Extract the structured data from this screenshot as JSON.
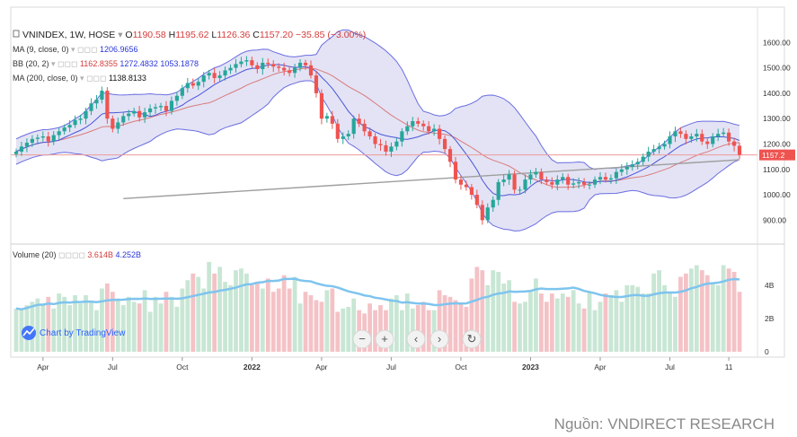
{
  "header": {
    "symbol": "VNINDEX, 1W, HOSE",
    "ohlc": {
      "o_label": "O",
      "o": "1190.58",
      "h_label": "H",
      "h": "1195.62",
      "l_label": "L",
      "l": "1126.36",
      "c_label": "C",
      "c": "1157.20",
      "change": "−35.85 (−3.00%)"
    }
  },
  "indicators": [
    {
      "label": "MA (9, close, 0)",
      "values": [
        "1206.9656"
      ],
      "colors": [
        "#2a36d9"
      ]
    },
    {
      "label": "BB (20, 2)",
      "values": [
        "1162.8355",
        "1272.4832",
        "1053.1878"
      ],
      "colors": [
        "#d63b3b",
        "#2a36d9",
        "#2a36d9"
      ]
    },
    {
      "label": "MA (200, close, 0)",
      "values": [
        "1138.8133"
      ],
      "colors": [
        "#111111"
      ]
    }
  ],
  "volume_legend": {
    "label": "Volume (20)",
    "values": [
      "3.614B",
      "4.252B"
    ],
    "colors": [
      "#d63b3b",
      "#2a36d9"
    ]
  },
  "last_price_label": "1157.2",
  "watermark": "Chart by TradingView",
  "source": "Nguồn: VNDIRECT RESEARCH",
  "colors": {
    "up": "#26a69a",
    "down": "#ef5350",
    "bb_fill": "#d9d9f2",
    "bb_line": "#6a6de0",
    "ma9": "#4a55d8",
    "ma20": "#d97b7b",
    "ma200": "#9e9e9e",
    "vol_ma": "#7ec4ee",
    "vol_up": "#c8e6d4",
    "vol_down": "#f4c2c6"
  },
  "chart_data": {
    "type": "candlestick",
    "y_ticks": [
      "900.00",
      "1000.00",
      "1100.00",
      "1200.00",
      "1300.00",
      "1400.00",
      "1500.00",
      "1600.00"
    ],
    "ylim": [
      820,
      1640
    ],
    "x_ticks": [
      {
        "week": 5,
        "label": "Apr"
      },
      {
        "week": 18,
        "label": "Jul"
      },
      {
        "week": 31,
        "label": "Oct"
      },
      {
        "week": 44,
        "label": "2022"
      },
      {
        "week": 57,
        "label": "Apr"
      },
      {
        "week": 70,
        "label": "Jul"
      },
      {
        "week": 83,
        "label": "Oct"
      },
      {
        "week": 96,
        "label": "2023"
      },
      {
        "week": 109,
        "label": "Apr"
      },
      {
        "week": 122,
        "label": "Jul"
      },
      {
        "week": 133,
        "label": "11"
      }
    ],
    "weeks": 136,
    "close": [
      1170,
      1190,
      1205,
      1220,
      1225,
      1230,
      1210,
      1235,
      1250,
      1265,
      1275,
      1295,
      1300,
      1330,
      1360,
      1375,
      1410,
      1300,
      1260,
      1285,
      1310,
      1320,
      1330,
      1305,
      1325,
      1340,
      1345,
      1350,
      1330,
      1370,
      1390,
      1420,
      1440,
      1430,
      1445,
      1470,
      1480,
      1460,
      1470,
      1490,
      1500,
      1515,
      1525,
      1530,
      1510,
      1495,
      1520,
      1515,
      1505,
      1500,
      1490,
      1480,
      1500,
      1520,
      1510,
      1470,
      1400,
      1300,
      1310,
      1280,
      1220,
      1230,
      1240,
      1300,
      1280,
      1250,
      1230,
      1200,
      1195,
      1170,
      1190,
      1210,
      1250,
      1270,
      1290,
      1280,
      1270,
      1250,
      1260,
      1220,
      1180,
      1130,
      1060,
      1040,
      1030,
      1000,
      960,
      900,
      950,
      980,
      1050,
      1060,
      1080,
      1020,
      1020,
      1060,
      1080,
      1090,
      1060,
      1050,
      1040,
      1060,
      1070,
      1040,
      1045,
      1050,
      1040,
      1040,
      1060,
      1070,
      1060,
      1065,
      1090,
      1100,
      1110,
      1120,
      1130,
      1150,
      1170,
      1180,
      1190,
      1200,
      1230,
      1250,
      1240,
      1220,
      1230,
      1240,
      1210,
      1200,
      1230,
      1240,
      1245,
      1210,
      1193,
      1157
    ],
    "volume_series": [
      {
        "name": "Volume",
        "unit": "B",
        "ylim": [
          0,
          5.5
        ],
        "y_ticks": [
          "0",
          "2B",
          "4B"
        ]
      }
    ],
    "volume": [
      2.6,
      2.5,
      2.8,
      3.0,
      3.2,
      2.9,
      3.3,
      2.6,
      3.5,
      3.3,
      2.8,
      3.4,
      2.9,
      3.4,
      3.0,
      2.5,
      3.8,
      4.1,
      3.6,
      3.2,
      2.8,
      3.3,
      3.0,
      2.9,
      3.7,
      2.4,
      3.3,
      2.9,
      3.6,
      3.3,
      2.7,
      3.8,
      4.3,
      4.7,
      4.5,
      3.8,
      5.4,
      4.7,
      5.1,
      4.2,
      4.0,
      4.9,
      5.0,
      4.7,
      4.0,
      4.2,
      3.8,
      4.4,
      3.6,
      3.8,
      4.6,
      3.8,
      4.5,
      2.9,
      3.6,
      3.4,
      3.1,
      3.0,
      3.7,
      3.8,
      2.4,
      2.6,
      2.7,
      3.2,
      2.5,
      2.3,
      2.9,
      2.5,
      2.8,
      2.5,
      3.2,
      3.4,
      2.5,
      3.5,
      2.6,
      2.8,
      3.0,
      2.5,
      2.5,
      3.7,
      3.4,
      3.3,
      3.1,
      2.9,
      2.7,
      4.4,
      5.1,
      4.9,
      4.0,
      4.9,
      4.8,
      4.1,
      4.3,
      3.0,
      2.9,
      3.0,
      3.6,
      4.4,
      3.5,
      3.0,
      3.5,
      3.2,
      3.5,
      3.3,
      3.7,
      2.9,
      2.6,
      3.6,
      2.5,
      3.0,
      3.5,
      3.4,
      3.7,
      3.0,
      4.0,
      4.0,
      3.9,
      3.5,
      3.5,
      4.7,
      4.9,
      4.0,
      3.5,
      3.3,
      4.5,
      4.7,
      5.0,
      5.2,
      4.9,
      4.6,
      4.1,
      4.0,
      5.2,
      5.0,
      4.8,
      3.6
    ],
    "ma200_range": [
      {
        "week": 20,
        "value": 985
      },
      {
        "week": 135,
        "value": 1138
      }
    ]
  }
}
